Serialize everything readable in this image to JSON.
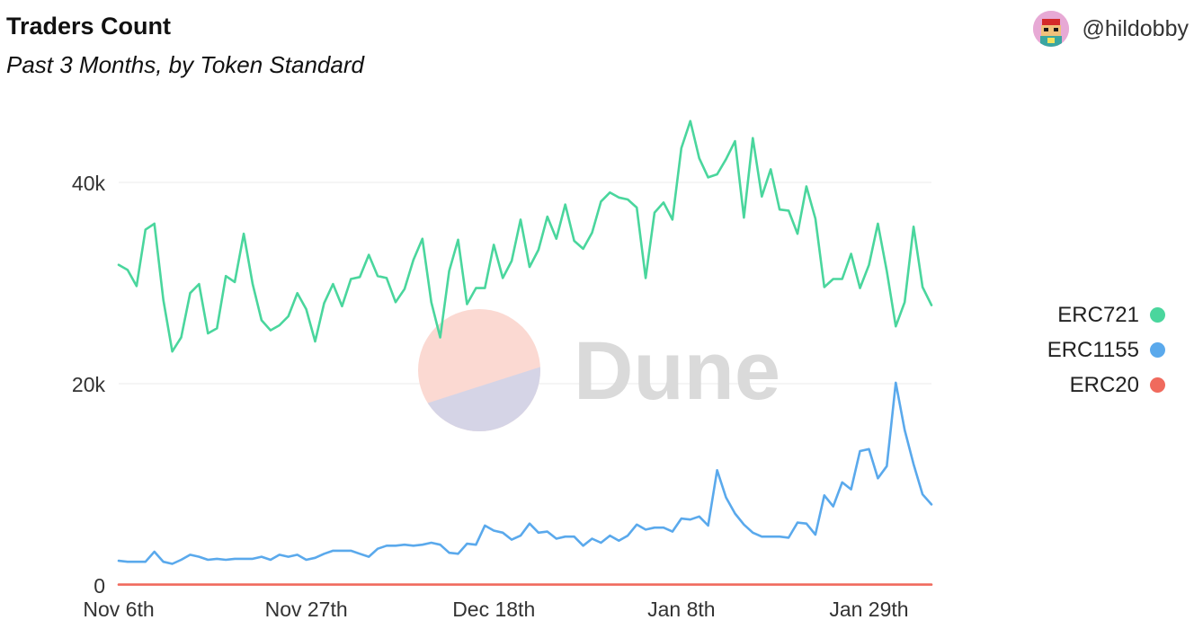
{
  "header": {
    "title": "Traders Count",
    "subtitle": "Past 3 Months, by Token Standard"
  },
  "author": {
    "handle": "@hildobby"
  },
  "watermark": {
    "text": "Dune",
    "icon": "dune-logo-icon"
  },
  "colors": {
    "ERC721": "#4ad69d",
    "ERC1155": "#5aa9ec",
    "ERC20": "#f06a5d",
    "grid": "#ebebeb",
    "axis_text": "#333333"
  },
  "chart_data": {
    "type": "line",
    "x_start": "Nov 6th",
    "x_step_days": 1,
    "xticks": [
      {
        "index": 0,
        "label": "Nov 6th"
      },
      {
        "index": 21,
        "label": "Nov 27th"
      },
      {
        "index": 42,
        "label": "Dec 18th"
      },
      {
        "index": 63,
        "label": "Jan 8th"
      },
      {
        "index": 84,
        "label": "Jan 29th"
      }
    ],
    "yticks": [
      {
        "value": 0,
        "label": "0"
      },
      {
        "value": 20000,
        "label": "20k"
      },
      {
        "value": 40000,
        "label": "40k"
      }
    ],
    "ylim": [
      0,
      45000
    ],
    "grid": true,
    "legend_position": "right",
    "series": [
      {
        "name": "ERC721",
        "values": [
          31800,
          31300,
          29700,
          35300,
          35900,
          28300,
          23200,
          24600,
          29000,
          29900,
          25000,
          25500,
          30700,
          30100,
          34900,
          29900,
          26300,
          25300,
          25800,
          26700,
          29000,
          27400,
          24200,
          28000,
          29900,
          27700,
          30400,
          30600,
          32800,
          30700,
          30500,
          28100,
          29400,
          32300,
          34400,
          28100,
          24600,
          31200,
          34300,
          27900,
          29500,
          29500,
          33800,
          30500,
          32200,
          36300,
          31600,
          33300,
          36600,
          34400,
          37800,
          34200,
          33400,
          35000,
          38100,
          39000,
          38500,
          38300,
          37500,
          30500,
          37000,
          38000,
          36300,
          43400,
          46100,
          42400,
          40500,
          40800,
          42300,
          44100,
          36500,
          44400,
          38600,
          41300,
          37300,
          37200,
          34900,
          39600,
          36400,
          29600,
          30400,
          30400,
          32900,
          29500,
          31800,
          35900,
          31200,
          25700,
          28100,
          35600,
          29600,
          27800
        ]
      },
      {
        "name": "ERC1155",
        "values": [
          2400,
          2300,
          2300,
          2300,
          3300,
          2300,
          2100,
          2500,
          3000,
          2800,
          2500,
          2600,
          2500,
          2600,
          2600,
          2600,
          2800,
          2500,
          3000,
          2800,
          3000,
          2500,
          2700,
          3100,
          3400,
          3400,
          3400,
          3100,
          2800,
          3600,
          3900,
          3900,
          4000,
          3900,
          4000,
          4200,
          4000,
          3200,
          3100,
          4100,
          4000,
          5900,
          5400,
          5200,
          4500,
          4900,
          6100,
          5200,
          5300,
          4600,
          4800,
          4800,
          3900,
          4600,
          4200,
          4900,
          4400,
          4900,
          6000,
          5500,
          5700,
          5700,
          5300,
          6600,
          6500,
          6800,
          5900,
          11400,
          8700,
          7100,
          6000,
          5200,
          4800,
          4800,
          4800,
          4700,
          6200,
          6100,
          5000,
          8900,
          7800,
          10200,
          9500,
          13300,
          13500,
          10600,
          11800,
          20100,
          15400,
          12000,
          9000,
          8000
        ]
      },
      {
        "name": "ERC20",
        "values": [
          40,
          40,
          40,
          40,
          40,
          40,
          40,
          40,
          40,
          40,
          40,
          40,
          40,
          40,
          40,
          40,
          40,
          40,
          40,
          40,
          40,
          40,
          40,
          40,
          40,
          40,
          40,
          40,
          40,
          40,
          40,
          40,
          40,
          40,
          40,
          40,
          40,
          40,
          40,
          40,
          40,
          40,
          40,
          40,
          40,
          40,
          40,
          40,
          40,
          40,
          40,
          40,
          40,
          40,
          40,
          40,
          40,
          40,
          40,
          40,
          40,
          40,
          40,
          40,
          40,
          40,
          40,
          40,
          40,
          40,
          40,
          40,
          40,
          40,
          40,
          40,
          40,
          40,
          40,
          40,
          40,
          40,
          40,
          40,
          40,
          40,
          40,
          40,
          40,
          40,
          40,
          40
        ]
      }
    ]
  }
}
